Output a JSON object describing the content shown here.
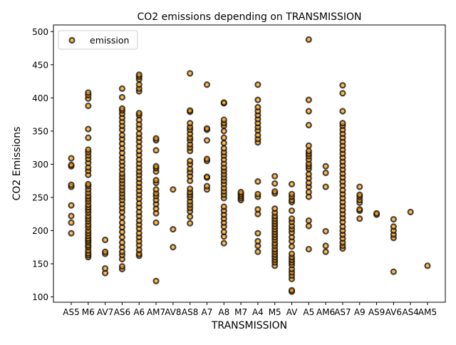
{
  "chart_data": {
    "type": "scatter",
    "title": "CO2 emissions depending on TRANSMISSION",
    "xlabel": "TRANSMISSION",
    "ylabel": "CO2 Emissions",
    "ylim": [
      92,
      510
    ],
    "yticks": [
      100,
      150,
      200,
      250,
      300,
      350,
      400,
      450,
      500
    ],
    "grid": false,
    "legend": {
      "placement": "top-left",
      "entries": [
        "emission"
      ]
    },
    "marker": {
      "fill": "#ff9f0e",
      "edge": "#000000",
      "alpha": 0.7
    },
    "categories": [
      "AS5",
      "M6",
      "AV7",
      "AS6",
      "A6",
      "AM7",
      "AV8",
      "AS8",
      "A7",
      "A8",
      "M7",
      "A4",
      "M5",
      "AV",
      "A5",
      "AM6",
      "AS7",
      "A9",
      "AS9",
      "AV6",
      "AS4",
      "AM5"
    ],
    "series": [
      {
        "name": "emission",
        "points": {
          "AS5": [
            196,
            212,
            222,
            238,
            266,
            269,
            297,
            299,
            309
          ],
          "M6": [
            160,
            163,
            166,
            170,
            175,
            178,
            182,
            185,
            188,
            192,
            196,
            200,
            205,
            209,
            214,
            218,
            222,
            227,
            231,
            235,
            239,
            244,
            248,
            252,
            257,
            262,
            267,
            270,
            284,
            290,
            295,
            302,
            308,
            313,
            318,
            322,
            340,
            353,
            388,
            399,
            404,
            408
          ],
          "AV7": [
            136,
            143,
            165,
            168,
            186
          ],
          "AS6": [
            142,
            146,
            157,
            163,
            168,
            175,
            182,
            190,
            198,
            205,
            212,
            220,
            228,
            234,
            240,
            246,
            251,
            256,
            261,
            266,
            271,
            276,
            281,
            286,
            292,
            298,
            304,
            310,
            317,
            324,
            331,
            338,
            344,
            352,
            358,
            364,
            370,
            376,
            381,
            384,
            401,
            414
          ],
          "A6": [
            162,
            165,
            171,
            178,
            184,
            190,
            196,
            203,
            209,
            215,
            222,
            228,
            235,
            241,
            248,
            254,
            260,
            266,
            272,
            278,
            284,
            289,
            295,
            301,
            307,
            314,
            320,
            327,
            334,
            340,
            346,
            354,
            360,
            367,
            374,
            377,
            410,
            414,
            420,
            428,
            432,
            435
          ],
          "AM7": [
            124,
            212,
            226,
            233,
            240,
            246,
            252,
            256,
            262,
            272,
            276,
            289,
            294,
            297,
            321,
            336,
            339
          ],
          "AV8": [
            175,
            202,
            262
          ],
          "AS8": [
            211,
            221,
            229,
            234,
            239,
            244,
            250,
            254,
            258,
            263,
            275,
            282,
            288,
            293,
            300,
            305,
            320,
            325,
            330,
            336,
            340,
            346,
            352,
            356,
            362,
            379,
            381,
            437
          ],
          "A7": [
            262,
            267,
            280,
            281,
            305,
            308,
            336,
            352,
            354,
            420
          ],
          "A8": [
            181,
            191,
            198,
            206,
            212,
            218,
            224,
            230,
            236,
            249,
            254,
            259,
            264,
            270,
            275,
            280,
            285,
            290,
            295,
            301,
            307,
            313,
            318,
            324,
            332,
            340,
            350,
            358,
            362,
            367,
            392,
            393
          ],
          "M7": [
            246,
            249,
            252,
            255,
            258
          ],
          "A4": [
            168,
            177,
            184,
            196,
            225,
            232,
            251,
            255,
            274,
            333,
            338,
            344,
            351,
            356,
            362,
            368,
            374,
            380,
            386,
            397,
            420
          ],
          "M5": [
            147,
            152,
            156,
            160,
            164,
            168,
            172,
            177,
            181,
            186,
            190,
            194,
            198,
            202,
            206,
            210,
            214,
            218,
            222,
            227,
            233,
            256,
            259,
            271,
            282
          ],
          "AV": [
            108,
            110,
            127,
            132,
            137,
            142,
            148,
            152,
            156,
            160,
            165,
            176,
            184,
            190,
            197,
            202,
            207,
            213,
            218,
            230,
            243,
            246,
            251,
            255,
            270
          ],
          "A5": [
            172,
            207,
            215,
            251,
            258,
            266,
            272,
            279,
            285,
            293,
            297,
            301,
            307,
            312,
            316,
            320,
            328,
            359,
            380,
            397,
            488
          ],
          "AM6": [
            168,
            177,
            199,
            266,
            287,
            297
          ],
          "AS7": [
            173,
            177,
            182,
            188,
            194,
            200,
            206,
            213,
            219,
            225,
            231,
            237,
            243,
            249,
            255,
            261,
            268,
            274,
            280,
            286,
            292,
            298,
            304,
            310,
            316,
            322,
            328,
            334,
            340,
            346,
            352,
            358,
            362,
            380,
            407,
            419
          ],
          "A9": [
            218,
            230,
            232,
            242,
            246,
            251,
            254,
            266
          ],
          "AS9": [
            224,
            226
          ],
          "AV6": [
            138,
            189,
            194,
            200,
            206,
            217
          ],
          "AS4": [
            228
          ],
          "AM5": [
            147
          ]
        }
      }
    ]
  }
}
